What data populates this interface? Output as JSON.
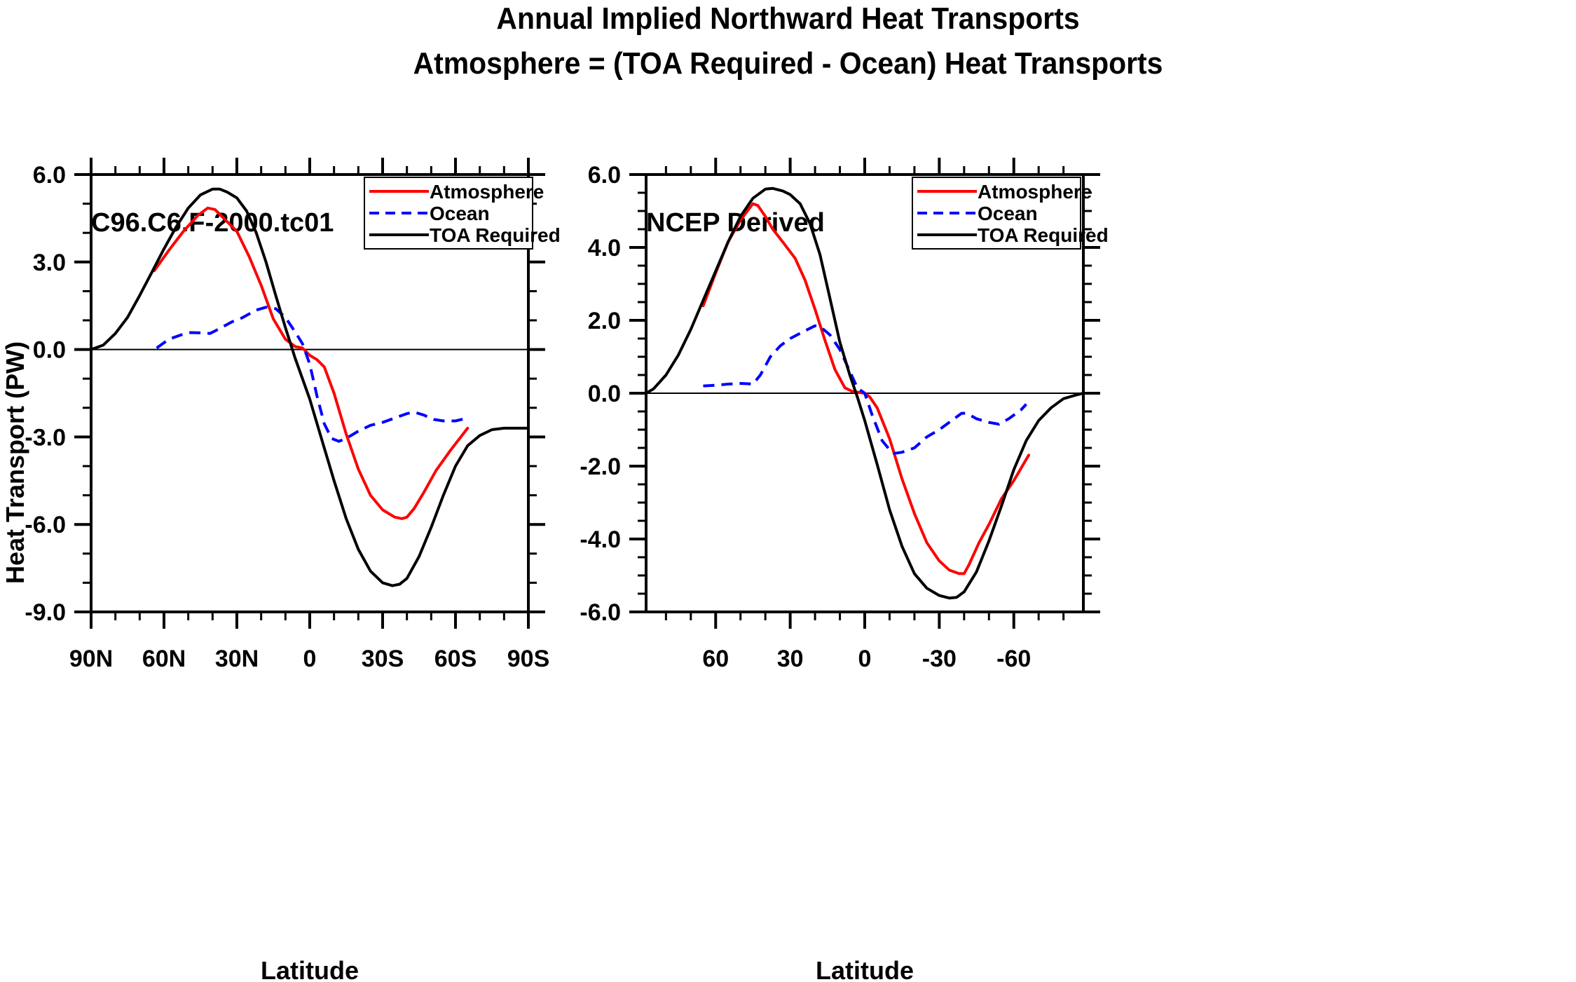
{
  "title": {
    "line1": "Annual Implied Northward Heat Transports",
    "line2": "Atmosphere = (TOA Required - Ocean) Heat Transports"
  },
  "chart_data": [
    {
      "type": "line",
      "title": "C96.C6.F-2000.tc01",
      "xlabel": "Latitude",
      "ylabel": "Heat Transport (PW)",
      "xlim": [
        90,
        -90
      ],
      "ylim": [
        -9,
        6
      ],
      "xticks": [
        90,
        60,
        30,
        0,
        -30,
        -60,
        -90
      ],
      "xtick_labels": [
        "90N",
        "60N",
        "30N",
        "0",
        "30S",
        "60S",
        "90S"
      ],
      "xminor_step": 10,
      "yticks": [
        6,
        3,
        0,
        -3,
        -6,
        -9
      ],
      "ytick_labels": [
        "6.0",
        "3.0",
        "0.0",
        "-3.0",
        "-6.0",
        "-9.0"
      ],
      "yminor_step": 1,
      "zero_line": true,
      "legend": {
        "position": "top-right",
        "entries": [
          "Atmosphere",
          "Ocean",
          "TOA Required"
        ]
      },
      "series": [
        {
          "name": "Atmosphere",
          "color": "#ff0000",
          "dash": "solid",
          "x": [
            64,
            58,
            52,
            46,
            42,
            39,
            36,
            30,
            25,
            20,
            15,
            10,
            6,
            3,
            0,
            -3,
            -6,
            -10,
            -15,
            -20,
            -25,
            -30,
            -35,
            -38,
            -40,
            -43,
            -47,
            -52,
            -58,
            -65
          ],
          "y": [
            2.7,
            3.4,
            4.05,
            4.6,
            4.85,
            4.8,
            4.55,
            4.05,
            3.2,
            2.2,
            1.05,
            0.35,
            0.1,
            0.05,
            -0.2,
            -0.35,
            -0.6,
            -1.5,
            -2.9,
            -4.1,
            -5.0,
            -5.5,
            -5.75,
            -5.8,
            -5.75,
            -5.45,
            -4.9,
            -4.15,
            -3.45,
            -2.7
          ]
        },
        {
          "name": "Ocean",
          "color": "#0000ff",
          "dash": "dashed",
          "x": [
            63,
            58,
            53,
            49,
            45,
            41,
            37,
            32,
            28,
            22,
            18,
            14,
            10,
            6,
            3,
            0,
            -3,
            -6,
            -9,
            -12,
            -15,
            -20,
            -25,
            -30,
            -35,
            -40,
            -43,
            -47,
            -51,
            -55,
            -60,
            -65
          ],
          "y": [
            0.05,
            0.35,
            0.5,
            0.58,
            0.57,
            0.55,
            0.72,
            0.95,
            1.08,
            1.35,
            1.45,
            1.4,
            1.1,
            0.6,
            0.2,
            -0.5,
            -1.6,
            -2.55,
            -3.05,
            -3.15,
            -3.05,
            -2.8,
            -2.6,
            -2.5,
            -2.35,
            -2.2,
            -2.15,
            -2.25,
            -2.4,
            -2.45,
            -2.45,
            -2.35
          ]
        },
        {
          "name": "TOA Required",
          "color": "#000000",
          "dash": "solid",
          "x": [
            90,
            85,
            80,
            75,
            70,
            65,
            60,
            55,
            50,
            45,
            40,
            37,
            34,
            30,
            26,
            22,
            18,
            14,
            10,
            6,
            3,
            0,
            -5,
            -10,
            -15,
            -20,
            -25,
            -30,
            -34,
            -37,
            -40,
            -45,
            -50,
            -55,
            -60,
            -65,
            -70,
            -75,
            -80,
            -85,
            -90
          ],
          "y": [
            0.0,
            0.15,
            0.55,
            1.1,
            1.85,
            2.65,
            3.45,
            4.2,
            4.85,
            5.3,
            5.5,
            5.5,
            5.4,
            5.2,
            4.75,
            4.0,
            3.0,
            1.85,
            0.75,
            -0.3,
            -1.0,
            -1.7,
            -3.1,
            -4.5,
            -5.8,
            -6.85,
            -7.6,
            -8.0,
            -8.1,
            -8.05,
            -7.85,
            -7.1,
            -6.1,
            -5.0,
            -4.0,
            -3.3,
            -2.95,
            -2.75,
            -2.7,
            -2.7,
            -2.7
          ]
        }
      ]
    },
    {
      "type": "line",
      "title": "NCEP Derived",
      "xlabel": "Latitude",
      "ylabel": "",
      "xlim": [
        88,
        -88
      ],
      "ylim": [
        -6,
        6
      ],
      "xticks": [
        60,
        30,
        0,
        -30,
        -60
      ],
      "xtick_labels": [
        "60",
        "30",
        "0",
        "-30",
        "-60"
      ],
      "xminor_step": 10,
      "yticks": [
        6,
        4,
        2,
        0,
        -2,
        -4,
        -6
      ],
      "ytick_labels": [
        "6.0",
        "4.0",
        "2.0",
        "0.0",
        "-2.0",
        "-4.0",
        "-6.0"
      ],
      "yminor_step": 0.5,
      "zero_line": true,
      "legend": {
        "position": "top-right",
        "entries": [
          "Atmosphere",
          "Ocean",
          "TOA Required"
        ]
      },
      "series": [
        {
          "name": "Atmosphere",
          "color": "#ff0000",
          "dash": "solid",
          "x": [
            65,
            60,
            55,
            50,
            45,
            43,
            40,
            37,
            33,
            28,
            24,
            20,
            16,
            12,
            8,
            5,
            2,
            0,
            -2,
            -5,
            -10,
            -15,
            -20,
            -25,
            -30,
            -34,
            -38,
            -40,
            -42,
            -46,
            -50,
            -55,
            -60,
            -66
          ],
          "y": [
            2.4,
            3.3,
            4.15,
            4.75,
            5.2,
            5.15,
            4.85,
            4.5,
            4.15,
            3.7,
            3.1,
            2.3,
            1.45,
            0.65,
            0.15,
            0.05,
            0.02,
            0.0,
            -0.1,
            -0.4,
            -1.25,
            -2.35,
            -3.3,
            -4.1,
            -4.6,
            -4.85,
            -4.95,
            -4.95,
            -4.7,
            -4.1,
            -3.6,
            -2.9,
            -2.4,
            -1.7
          ]
        },
        {
          "name": "Ocean",
          "color": "#0000ff",
          "dash": "dashed",
          "x": [
            65,
            60,
            55,
            50,
            47,
            45,
            42,
            38,
            34,
            30,
            25,
            20,
            18,
            14,
            10,
            6,
            3,
            0,
            -3,
            -7,
            -10,
            -12,
            -15,
            -20,
            -25,
            -30,
            -35,
            -39,
            -41,
            -45,
            -50,
            -54,
            -58,
            -63,
            -65
          ],
          "y": [
            0.2,
            0.22,
            0.25,
            0.27,
            0.26,
            0.25,
            0.5,
            1.0,
            1.3,
            1.5,
            1.68,
            1.85,
            1.83,
            1.6,
            1.2,
            0.6,
            0.15,
            0.0,
            -0.6,
            -1.3,
            -1.55,
            -1.65,
            -1.62,
            -1.5,
            -1.2,
            -1.0,
            -0.75,
            -0.55,
            -0.55,
            -0.7,
            -0.8,
            -0.85,
            -0.7,
            -0.45,
            -0.3
          ]
        },
        {
          "name": "TOA Required",
          "color": "#000000",
          "dash": "solid",
          "x": [
            88,
            85,
            80,
            75,
            70,
            65,
            60,
            55,
            50,
            45,
            40,
            37,
            33,
            30,
            26,
            22,
            18,
            14,
            10,
            6,
            3,
            0,
            -5,
            -10,
            -15,
            -20,
            -25,
            -30,
            -34,
            -37,
            -40,
            -45,
            -50,
            -55,
            -60,
            -65,
            -70,
            -75,
            -80,
            -85,
            -88
          ],
          "y": [
            0.0,
            0.12,
            0.5,
            1.05,
            1.75,
            2.55,
            3.35,
            4.15,
            4.85,
            5.35,
            5.6,
            5.62,
            5.55,
            5.45,
            5.2,
            4.65,
            3.8,
            2.6,
            1.4,
            0.5,
            -0.1,
            -0.75,
            -1.95,
            -3.2,
            -4.2,
            -4.95,
            -5.35,
            -5.55,
            -5.62,
            -5.6,
            -5.45,
            -4.9,
            -4.05,
            -3.1,
            -2.1,
            -1.3,
            -0.75,
            -0.4,
            -0.15,
            -0.05,
            0.0
          ]
        }
      ]
    }
  ]
}
